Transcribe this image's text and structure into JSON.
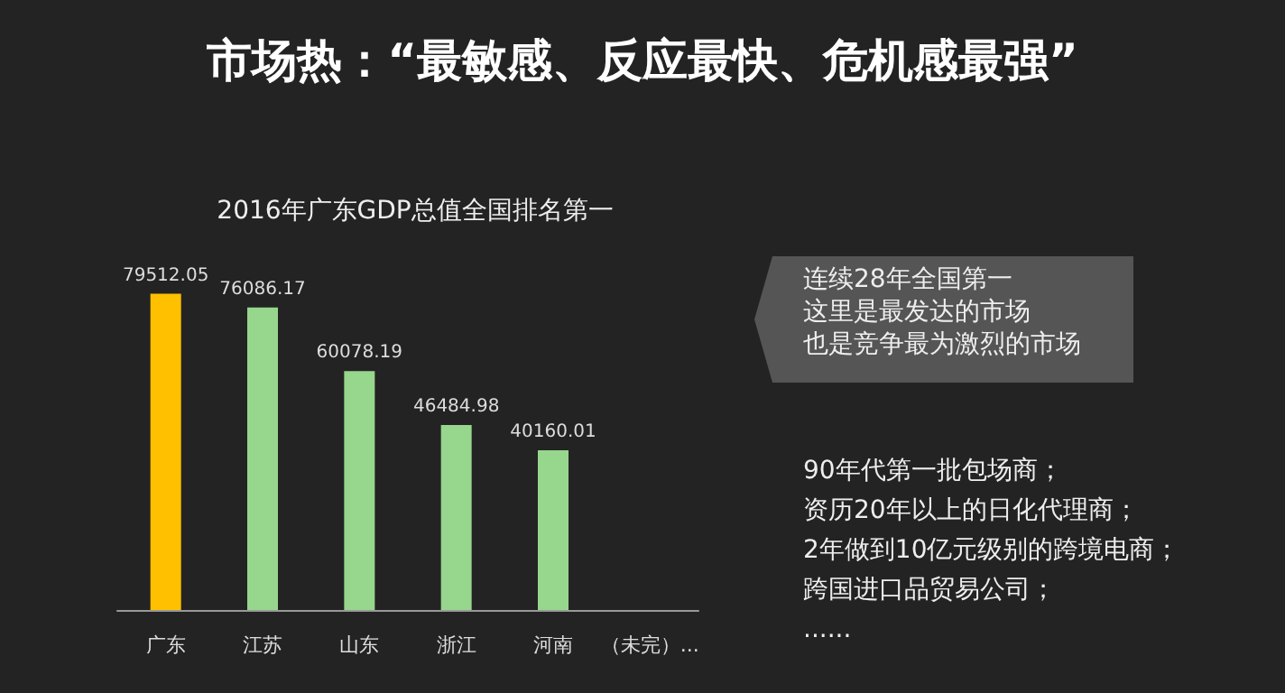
{
  "chart_data": {
    "type": "bar",
    "title": "市场热：“最敏感、反应最快、危机感最强”",
    "subtitle": "2016年广东GDP总值全国排名第一",
    "categories": [
      "广东",
      "江苏",
      "山东",
      "浙江",
      "河南",
      "（未完）..."
    ],
    "values": [
      79512.05,
      76086.17,
      60078.19,
      46484.98,
      40160.01,
      null
    ],
    "colors": [
      "#ffc000",
      "#97d68d",
      "#97d68d",
      "#97d68d",
      "#97d68d",
      "#97d68d"
    ],
    "data_labels": true,
    "grid": false,
    "tick_labels": "x",
    "annotations": [
      "连续28年全国第一",
      "这里是最发达的市场",
      "也是竞争最为激烈的市场",
      "90年代第一批包场商；",
      "资历20年以上的日化代理商；",
      "2年做到10亿元级别的跨境电商；",
      "跨国进口品贸易公司；",
      "......"
    ]
  }
}
